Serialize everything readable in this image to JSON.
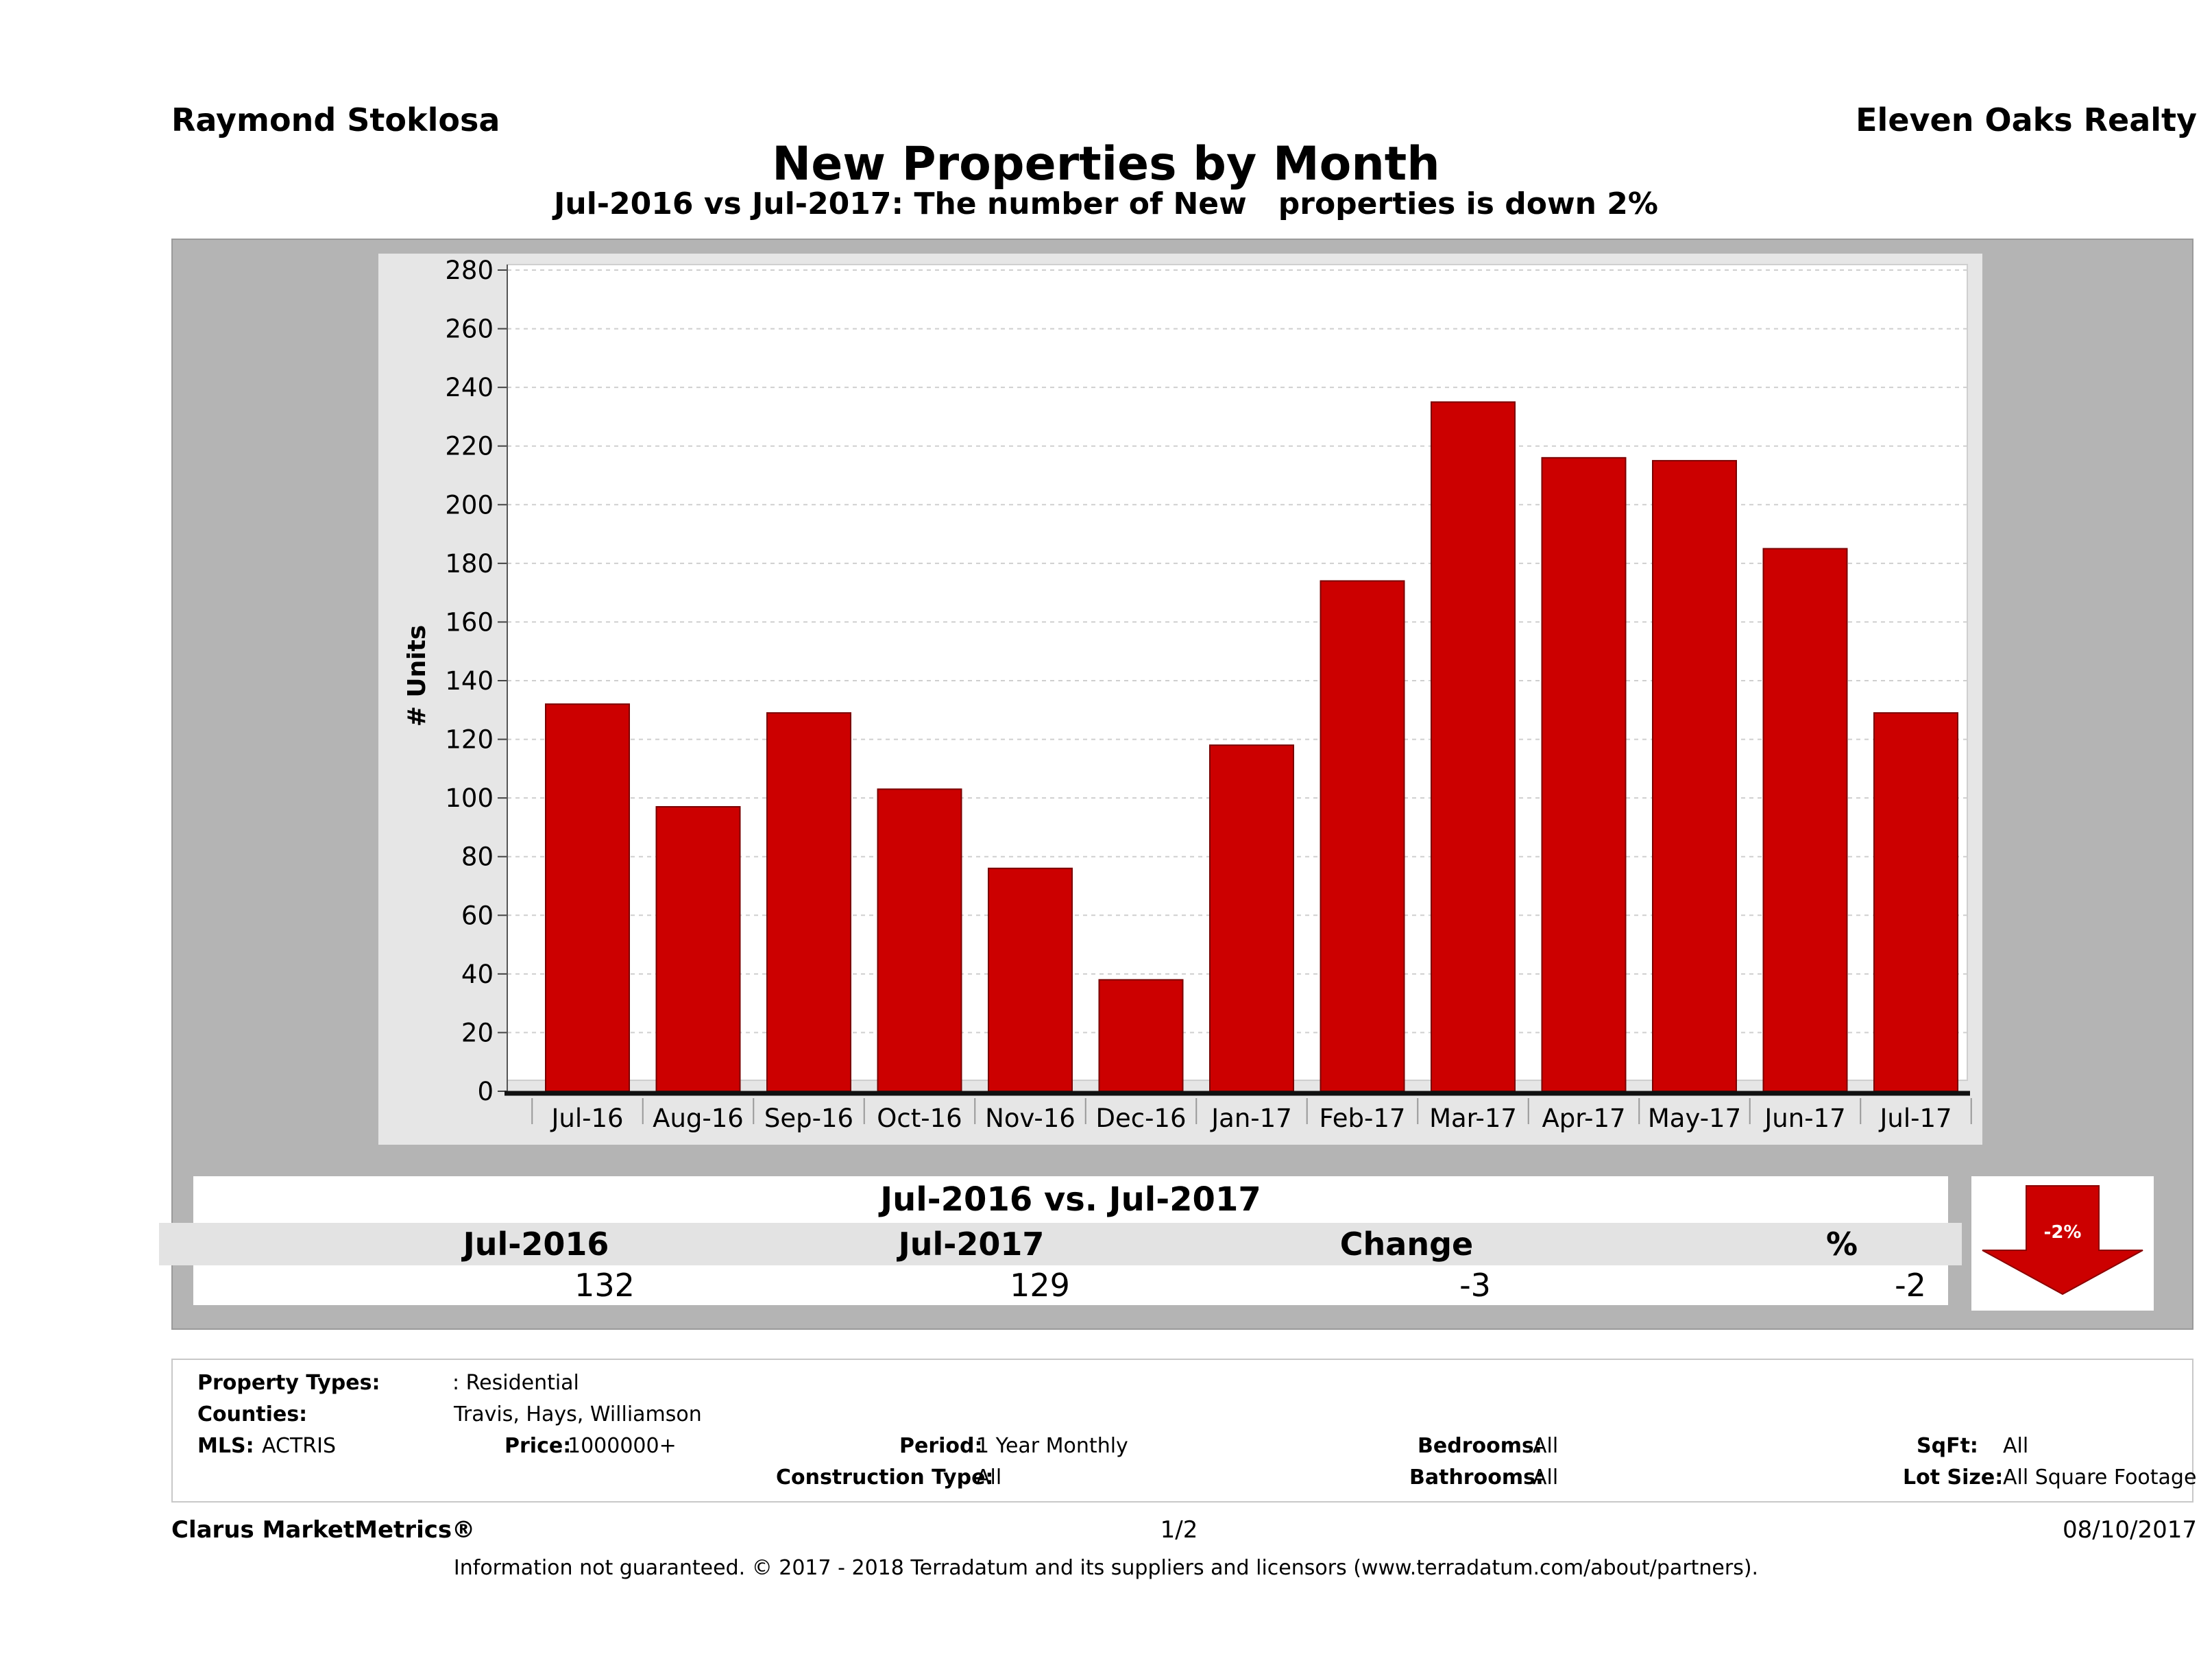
{
  "header": {
    "agent_name": "Raymond Stoklosa",
    "brokerage": "Eleven Oaks Realty",
    "title": "New Properties by Month",
    "subtitle": "Jul-2016 vs Jul-2017: The number of New   properties is down 2%"
  },
  "chart_data": {
    "type": "bar",
    "categories": [
      "Jul-16",
      "Aug-16",
      "Sep-16",
      "Oct-16",
      "Nov-16",
      "Dec-16",
      "Jan-17",
      "Feb-17",
      "Mar-17",
      "Apr-17",
      "May-17",
      "Jun-17",
      "Jul-17"
    ],
    "values": [
      132,
      97,
      129,
      103,
      76,
      38,
      118,
      174,
      235,
      216,
      215,
      185,
      129
    ],
    "ylabel": "# Units",
    "ylim": [
      0,
      280
    ],
    "yticks": [
      0,
      20,
      40,
      60,
      80,
      100,
      120,
      140,
      160,
      180,
      200,
      220,
      240,
      260,
      280
    ],
    "grid": true,
    "bar_color": "#cc0000"
  },
  "comparison": {
    "heading": "Jul-2016 vs. Jul-2017",
    "columns": [
      "Jul-2016",
      "Jul-2017",
      "Change",
      "%"
    ],
    "values": [
      "132",
      "129",
      "-3",
      "-2"
    ],
    "badge": "-2%",
    "badge_color": "#cc0000"
  },
  "filters": {
    "property_types_label": "Property Types:",
    "property_types_value": ": Residential",
    "counties_label": "Counties:",
    "counties_value": "Travis, Hays, Williamson",
    "mls_label": "MLS:",
    "mls_value": "ACTRIS",
    "price_label": "Price:",
    "price_value": "1000000+",
    "period_label": "Period:",
    "period_value": "1 Year Monthly",
    "construction_label": "Construction Type:",
    "construction_value": "All",
    "bedrooms_label": "Bedrooms:",
    "bedrooms_value": "All",
    "bathrooms_label": "Bathrooms:",
    "bathrooms_value": "All",
    "sqft_label": "SqFt:",
    "sqft_value": "All",
    "lotsize_label": "Lot Size:",
    "lotsize_value": "All Square Footage"
  },
  "footer": {
    "brand": "Clarus MarketMetrics®",
    "page": "1/2",
    "date": "08/10/2017",
    "disclaimer": "Information not guaranteed. © 2017 - 2018 Terradatum and its suppliers and licensors (www.terradatum.com/about/partners)."
  }
}
